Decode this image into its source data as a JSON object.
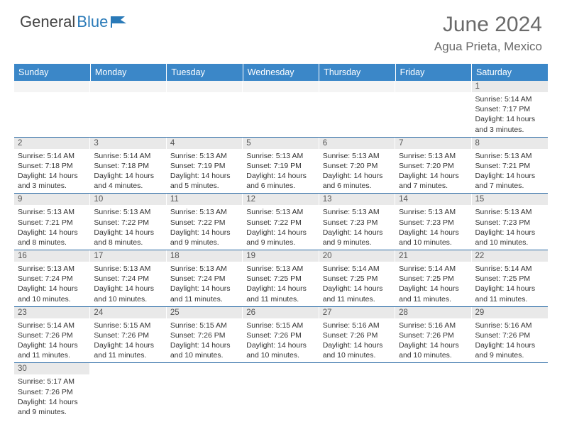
{
  "brand": {
    "part1": "General",
    "part2": "Blue"
  },
  "title": "June 2024",
  "location": "Agua Prieta, Mexico",
  "colors": {
    "header_bg": "#3b87c8",
    "header_text": "#ffffff",
    "daynum_bg": "#e9e9e9",
    "row_border": "#2a6aa5",
    "title_color": "#6a6a6a"
  },
  "weekdays": [
    "Sunday",
    "Monday",
    "Tuesday",
    "Wednesday",
    "Thursday",
    "Friday",
    "Saturday"
  ],
  "weeks": [
    [
      null,
      null,
      null,
      null,
      null,
      null,
      {
        "n": "1",
        "sr": "Sunrise: 5:14 AM",
        "ss": "Sunset: 7:17 PM",
        "dl1": "Daylight: 14 hours",
        "dl2": "and 3 minutes."
      }
    ],
    [
      {
        "n": "2",
        "sr": "Sunrise: 5:14 AM",
        "ss": "Sunset: 7:18 PM",
        "dl1": "Daylight: 14 hours",
        "dl2": "and 3 minutes."
      },
      {
        "n": "3",
        "sr": "Sunrise: 5:14 AM",
        "ss": "Sunset: 7:18 PM",
        "dl1": "Daylight: 14 hours",
        "dl2": "and 4 minutes."
      },
      {
        "n": "4",
        "sr": "Sunrise: 5:13 AM",
        "ss": "Sunset: 7:19 PM",
        "dl1": "Daylight: 14 hours",
        "dl2": "and 5 minutes."
      },
      {
        "n": "5",
        "sr": "Sunrise: 5:13 AM",
        "ss": "Sunset: 7:19 PM",
        "dl1": "Daylight: 14 hours",
        "dl2": "and 6 minutes."
      },
      {
        "n": "6",
        "sr": "Sunrise: 5:13 AM",
        "ss": "Sunset: 7:20 PM",
        "dl1": "Daylight: 14 hours",
        "dl2": "and 6 minutes."
      },
      {
        "n": "7",
        "sr": "Sunrise: 5:13 AM",
        "ss": "Sunset: 7:20 PM",
        "dl1": "Daylight: 14 hours",
        "dl2": "and 7 minutes."
      },
      {
        "n": "8",
        "sr": "Sunrise: 5:13 AM",
        "ss": "Sunset: 7:21 PM",
        "dl1": "Daylight: 14 hours",
        "dl2": "and 7 minutes."
      }
    ],
    [
      {
        "n": "9",
        "sr": "Sunrise: 5:13 AM",
        "ss": "Sunset: 7:21 PM",
        "dl1": "Daylight: 14 hours",
        "dl2": "and 8 minutes."
      },
      {
        "n": "10",
        "sr": "Sunrise: 5:13 AM",
        "ss": "Sunset: 7:22 PM",
        "dl1": "Daylight: 14 hours",
        "dl2": "and 8 minutes."
      },
      {
        "n": "11",
        "sr": "Sunrise: 5:13 AM",
        "ss": "Sunset: 7:22 PM",
        "dl1": "Daylight: 14 hours",
        "dl2": "and 9 minutes."
      },
      {
        "n": "12",
        "sr": "Sunrise: 5:13 AM",
        "ss": "Sunset: 7:22 PM",
        "dl1": "Daylight: 14 hours",
        "dl2": "and 9 minutes."
      },
      {
        "n": "13",
        "sr": "Sunrise: 5:13 AM",
        "ss": "Sunset: 7:23 PM",
        "dl1": "Daylight: 14 hours",
        "dl2": "and 9 minutes."
      },
      {
        "n": "14",
        "sr": "Sunrise: 5:13 AM",
        "ss": "Sunset: 7:23 PM",
        "dl1": "Daylight: 14 hours",
        "dl2": "and 10 minutes."
      },
      {
        "n": "15",
        "sr": "Sunrise: 5:13 AM",
        "ss": "Sunset: 7:23 PM",
        "dl1": "Daylight: 14 hours",
        "dl2": "and 10 minutes."
      }
    ],
    [
      {
        "n": "16",
        "sr": "Sunrise: 5:13 AM",
        "ss": "Sunset: 7:24 PM",
        "dl1": "Daylight: 14 hours",
        "dl2": "and 10 minutes."
      },
      {
        "n": "17",
        "sr": "Sunrise: 5:13 AM",
        "ss": "Sunset: 7:24 PM",
        "dl1": "Daylight: 14 hours",
        "dl2": "and 10 minutes."
      },
      {
        "n": "18",
        "sr": "Sunrise: 5:13 AM",
        "ss": "Sunset: 7:24 PM",
        "dl1": "Daylight: 14 hours",
        "dl2": "and 11 minutes."
      },
      {
        "n": "19",
        "sr": "Sunrise: 5:13 AM",
        "ss": "Sunset: 7:25 PM",
        "dl1": "Daylight: 14 hours",
        "dl2": "and 11 minutes."
      },
      {
        "n": "20",
        "sr": "Sunrise: 5:14 AM",
        "ss": "Sunset: 7:25 PM",
        "dl1": "Daylight: 14 hours",
        "dl2": "and 11 minutes."
      },
      {
        "n": "21",
        "sr": "Sunrise: 5:14 AM",
        "ss": "Sunset: 7:25 PM",
        "dl1": "Daylight: 14 hours",
        "dl2": "and 11 minutes."
      },
      {
        "n": "22",
        "sr": "Sunrise: 5:14 AM",
        "ss": "Sunset: 7:25 PM",
        "dl1": "Daylight: 14 hours",
        "dl2": "and 11 minutes."
      }
    ],
    [
      {
        "n": "23",
        "sr": "Sunrise: 5:14 AM",
        "ss": "Sunset: 7:26 PM",
        "dl1": "Daylight: 14 hours",
        "dl2": "and 11 minutes."
      },
      {
        "n": "24",
        "sr": "Sunrise: 5:15 AM",
        "ss": "Sunset: 7:26 PM",
        "dl1": "Daylight: 14 hours",
        "dl2": "and 11 minutes."
      },
      {
        "n": "25",
        "sr": "Sunrise: 5:15 AM",
        "ss": "Sunset: 7:26 PM",
        "dl1": "Daylight: 14 hours",
        "dl2": "and 10 minutes."
      },
      {
        "n": "26",
        "sr": "Sunrise: 5:15 AM",
        "ss": "Sunset: 7:26 PM",
        "dl1": "Daylight: 14 hours",
        "dl2": "and 10 minutes."
      },
      {
        "n": "27",
        "sr": "Sunrise: 5:16 AM",
        "ss": "Sunset: 7:26 PM",
        "dl1": "Daylight: 14 hours",
        "dl2": "and 10 minutes."
      },
      {
        "n": "28",
        "sr": "Sunrise: 5:16 AM",
        "ss": "Sunset: 7:26 PM",
        "dl1": "Daylight: 14 hours",
        "dl2": "and 10 minutes."
      },
      {
        "n": "29",
        "sr": "Sunrise: 5:16 AM",
        "ss": "Sunset: 7:26 PM",
        "dl1": "Daylight: 14 hours",
        "dl2": "and 9 minutes."
      }
    ],
    [
      {
        "n": "30",
        "sr": "Sunrise: 5:17 AM",
        "ss": "Sunset: 7:26 PM",
        "dl1": "Daylight: 14 hours",
        "dl2": "and 9 minutes."
      },
      null,
      null,
      null,
      null,
      null,
      null
    ]
  ]
}
